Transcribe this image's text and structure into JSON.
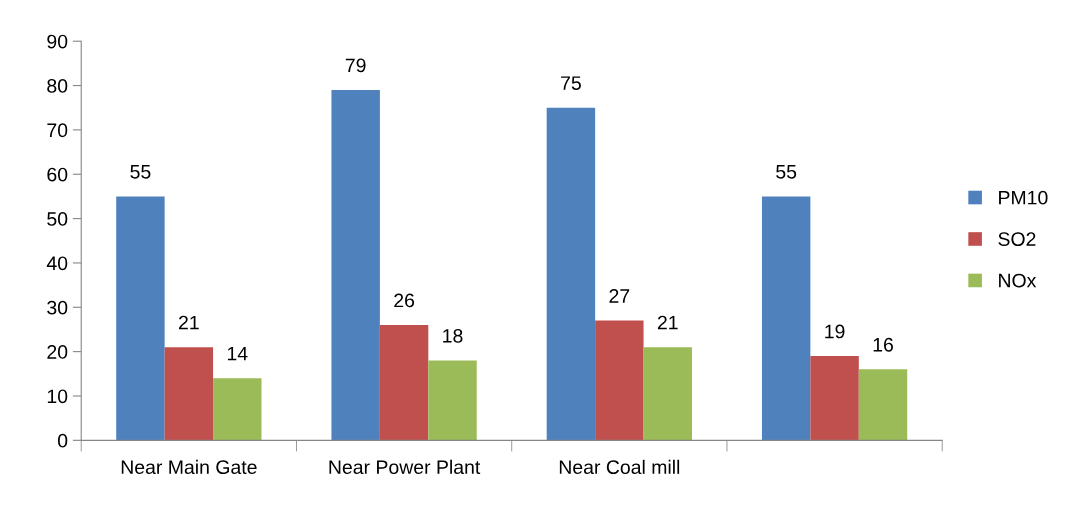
{
  "chart_data": {
    "type": "bar",
    "categories": [
      "Near Main Gate",
      "Near Power Plant",
      "Near Coal mill",
      null
    ],
    "series": [
      {
        "name": "PM10",
        "color": "#4f81bd",
        "values": [
          55,
          79,
          75,
          55
        ]
      },
      {
        "name": "SO2",
        "color": "#c0504d",
        "values": [
          21,
          26,
          27,
          19
        ]
      },
      {
        "name": "NOx",
        "color": "#9bbb59",
        "values": [
          14,
          18,
          21,
          16
        ]
      }
    ],
    "ylim": [
      0,
      90
    ],
    "yticks": [
      0,
      10,
      20,
      30,
      40,
      50,
      60,
      70,
      80,
      90
    ],
    "data_labels": true,
    "legend": "right",
    "grid": false
  }
}
